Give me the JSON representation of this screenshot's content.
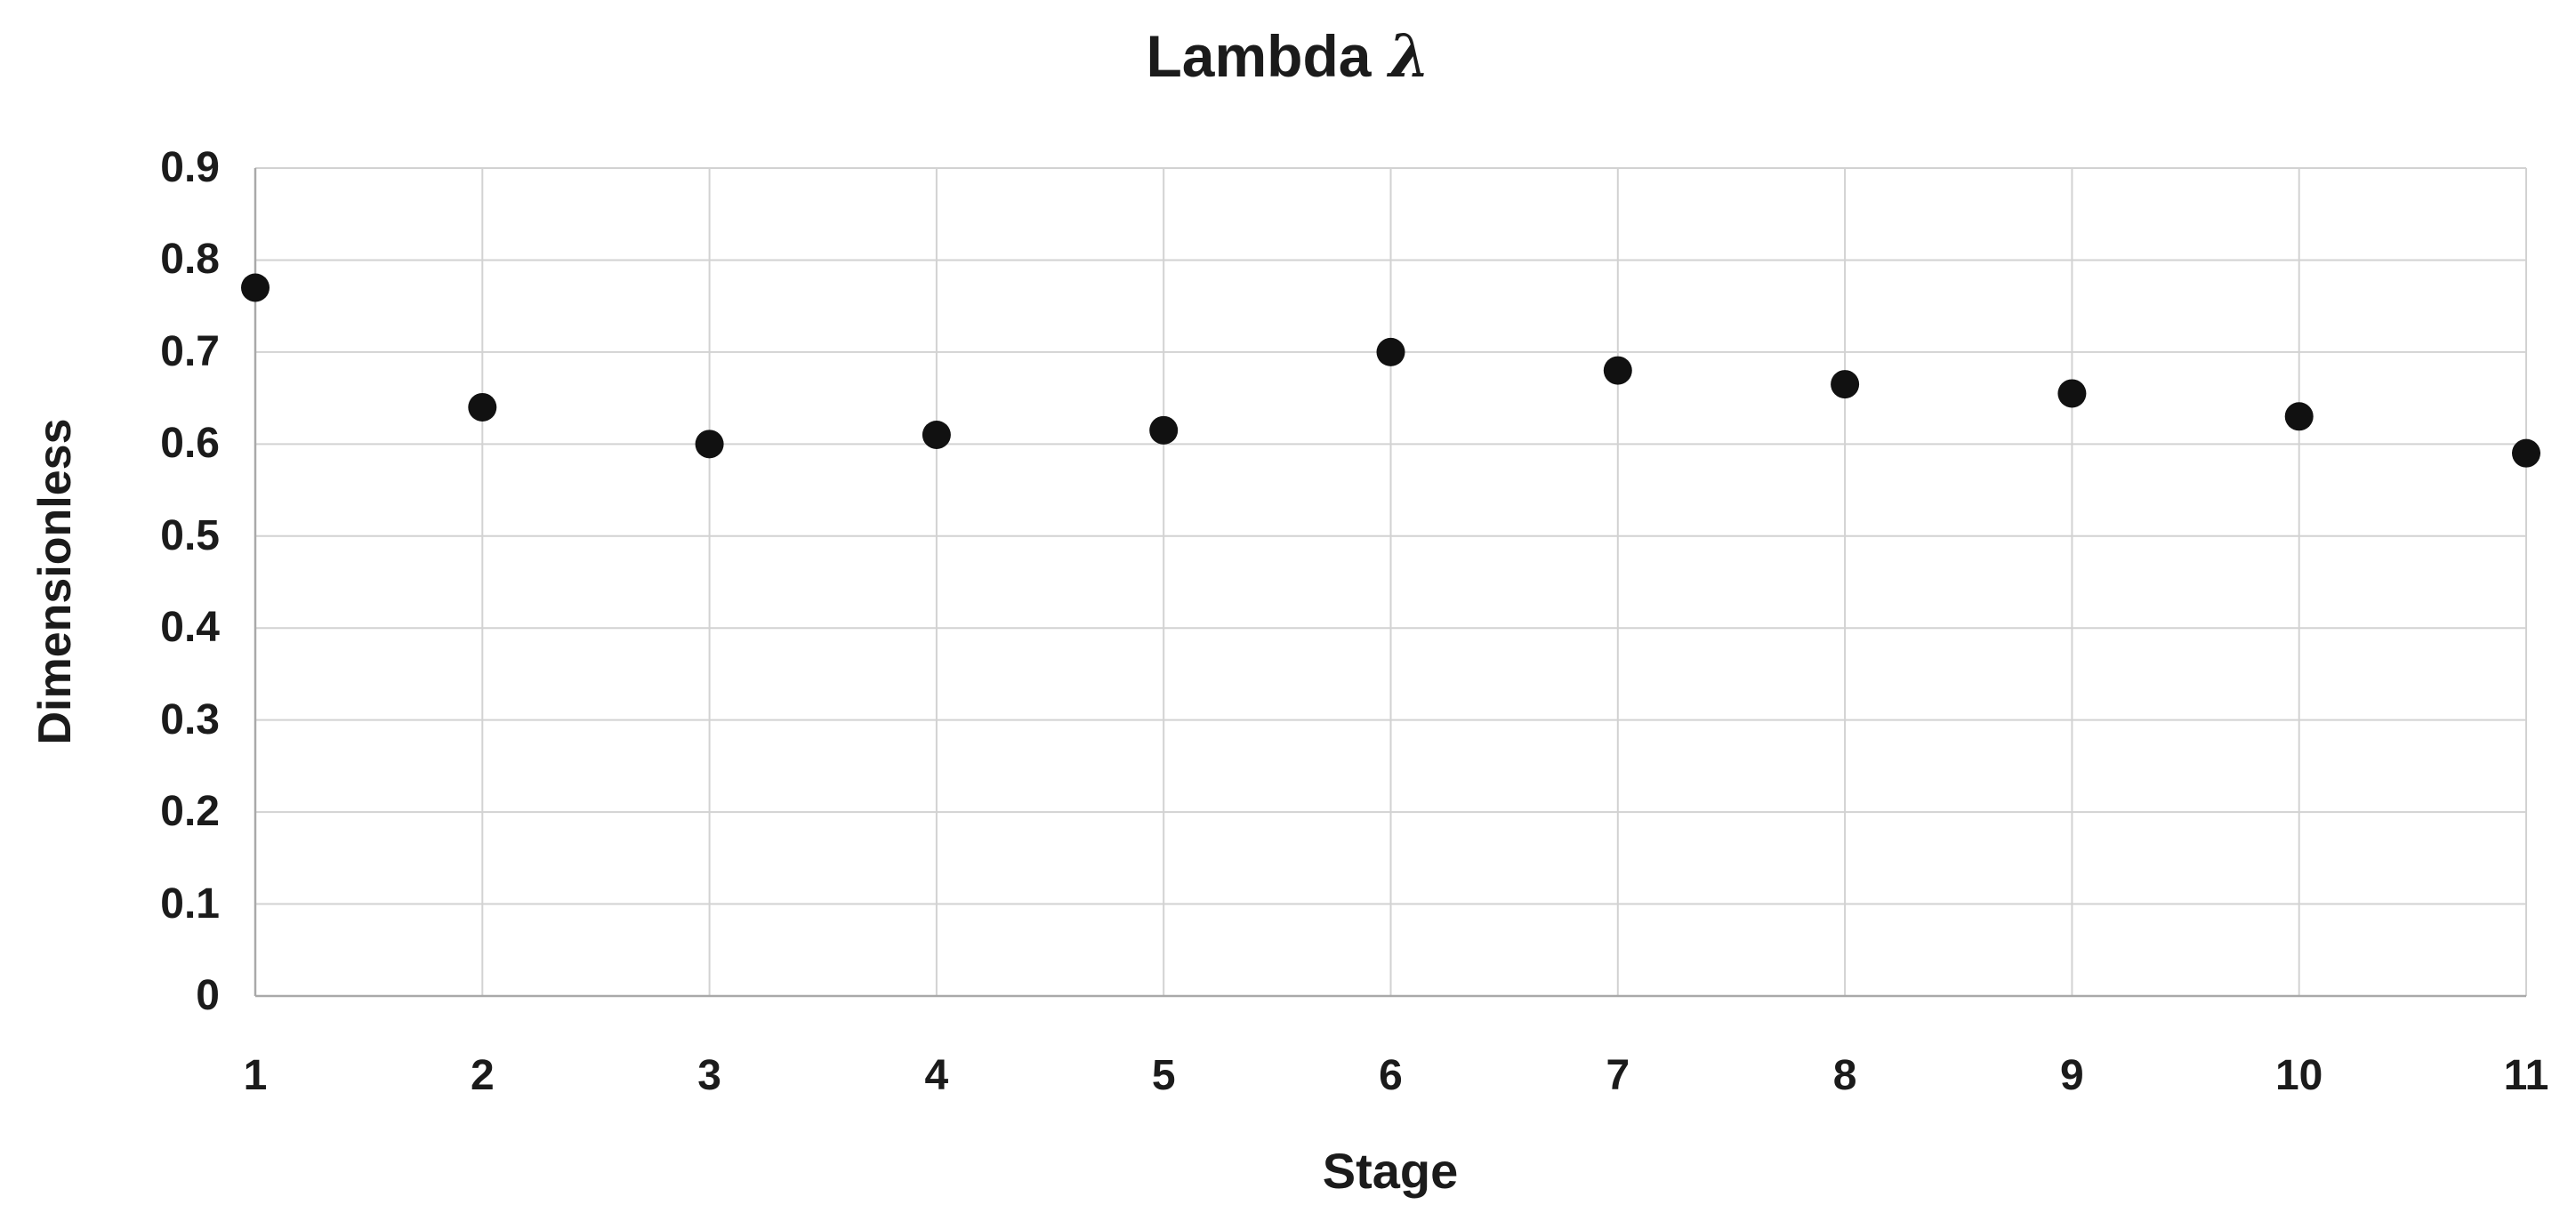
{
  "chart_data": {
    "type": "scatter",
    "title": "Lambda λ",
    "title_main": "Lambda",
    "title_symbol": "λ",
    "xlabel": "Stage",
    "ylabel": "Dimensionless",
    "x": [
      1,
      2,
      3,
      4,
      5,
      6,
      7,
      8,
      9,
      10,
      11
    ],
    "y": [
      0.77,
      0.64,
      0.6,
      0.61,
      0.615,
      0.7,
      0.68,
      0.665,
      0.655,
      0.63,
      0.59
    ],
    "series_name": "Lambda",
    "ylim": [
      0,
      0.9
    ],
    "ytick_step": 0.1,
    "y_tick_labels": [
      "0.9",
      "0.8",
      "0.7",
      "0.6",
      "0.5",
      "0.4",
      "0.3",
      "0.2",
      "0.1",
      "0"
    ],
    "x_tick_labels": [
      "1",
      "2",
      "3",
      "4",
      "5",
      "6",
      "7",
      "8",
      "9",
      "10",
      "11"
    ],
    "grid": true,
    "legend_position": "none",
    "marker": "circle",
    "marker_radius_px": 16,
    "colors": {
      "point": "#111111",
      "gridline": "#d2d2d2",
      "axis_line": "#a9a9a9",
      "text": "#1b1b1b",
      "background": "#ffffff"
    }
  }
}
